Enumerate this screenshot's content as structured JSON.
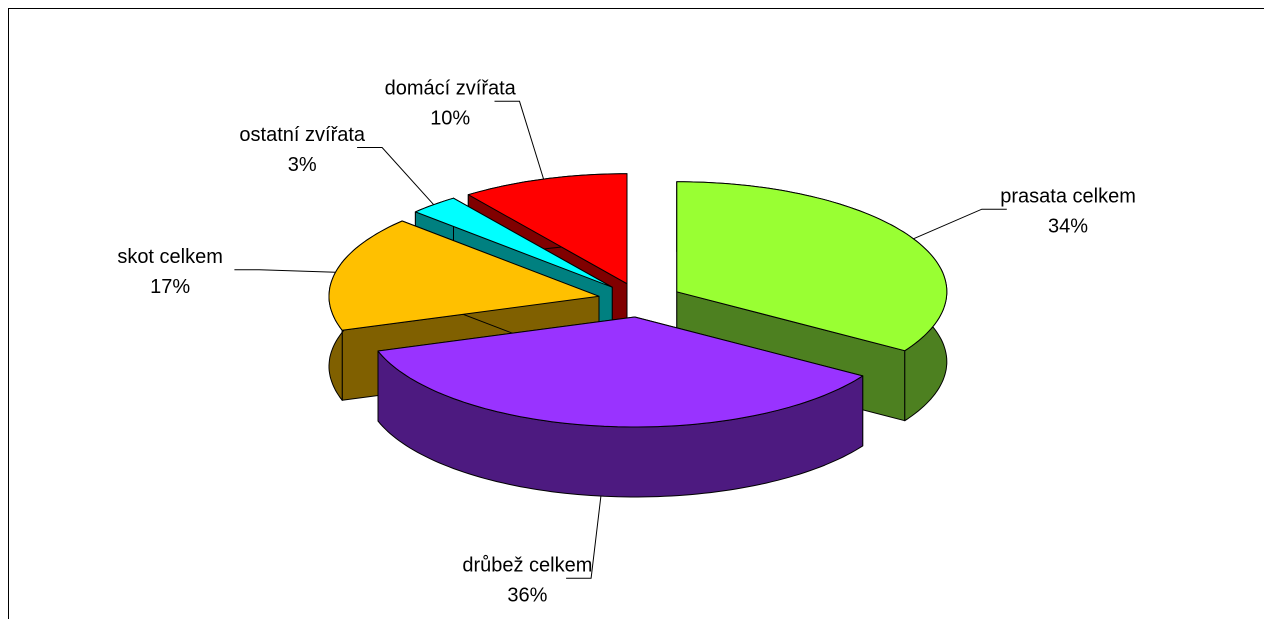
{
  "chart_data": {
    "type": "pie",
    "three_d": true,
    "exploded": true,
    "categories": [
      "prasata celkem",
      "drůbež celkem",
      "skot celkem",
      "ostatní zvířata",
      "domácí zvířata"
    ],
    "values": [
      34,
      36,
      17,
      3,
      10
    ],
    "value_labels": [
      "34%",
      "36%",
      "17%",
      "3%",
      "10%"
    ],
    "colors": [
      "#99ff33",
      "#9933ff",
      "#ffc000",
      "#00ffff",
      "#ff0000"
    ],
    "side_colors": [
      "#4d8020",
      "#4d1a80",
      "#806000",
      "#008080",
      "#800000"
    ]
  }
}
